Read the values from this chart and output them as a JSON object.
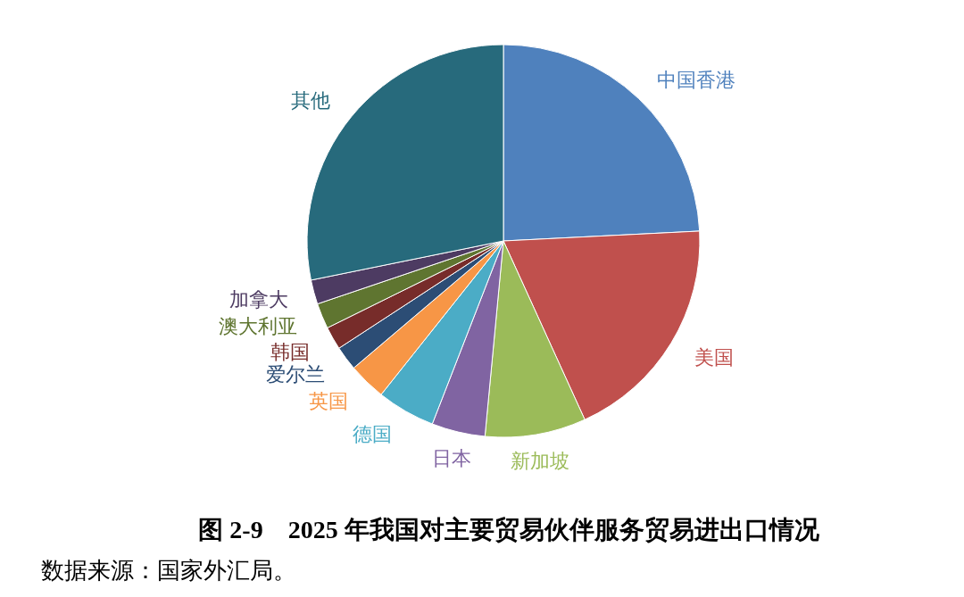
{
  "chart_data": {
    "type": "pie",
    "title": "图 2-9　2025 年我国对主要贸易伙伴服务贸易进出口情况",
    "annotations": [
      "数据来源：国家外汇局。"
    ],
    "categories": [
      "中国香港",
      "美国",
      "新加坡",
      "日本",
      "德国",
      "英国",
      "爱尔兰",
      "韩国",
      "澳大利亚",
      "加拿大",
      "其他"
    ],
    "values": [
      24.2,
      19.0,
      8.3,
      4.4,
      4.8,
      3.1,
      2.0,
      1.9,
      2.1,
      2.0,
      28.2
    ],
    "colors": [
      "#4f81bd",
      "#c0504d",
      "#9bbb59",
      "#8064a2",
      "#4bacc6",
      "#f79646",
      "#2c4d75",
      "#772c2a",
      "#5f7530",
      "#4d3b62",
      "#276a7c"
    ],
    "legend": false
  }
}
